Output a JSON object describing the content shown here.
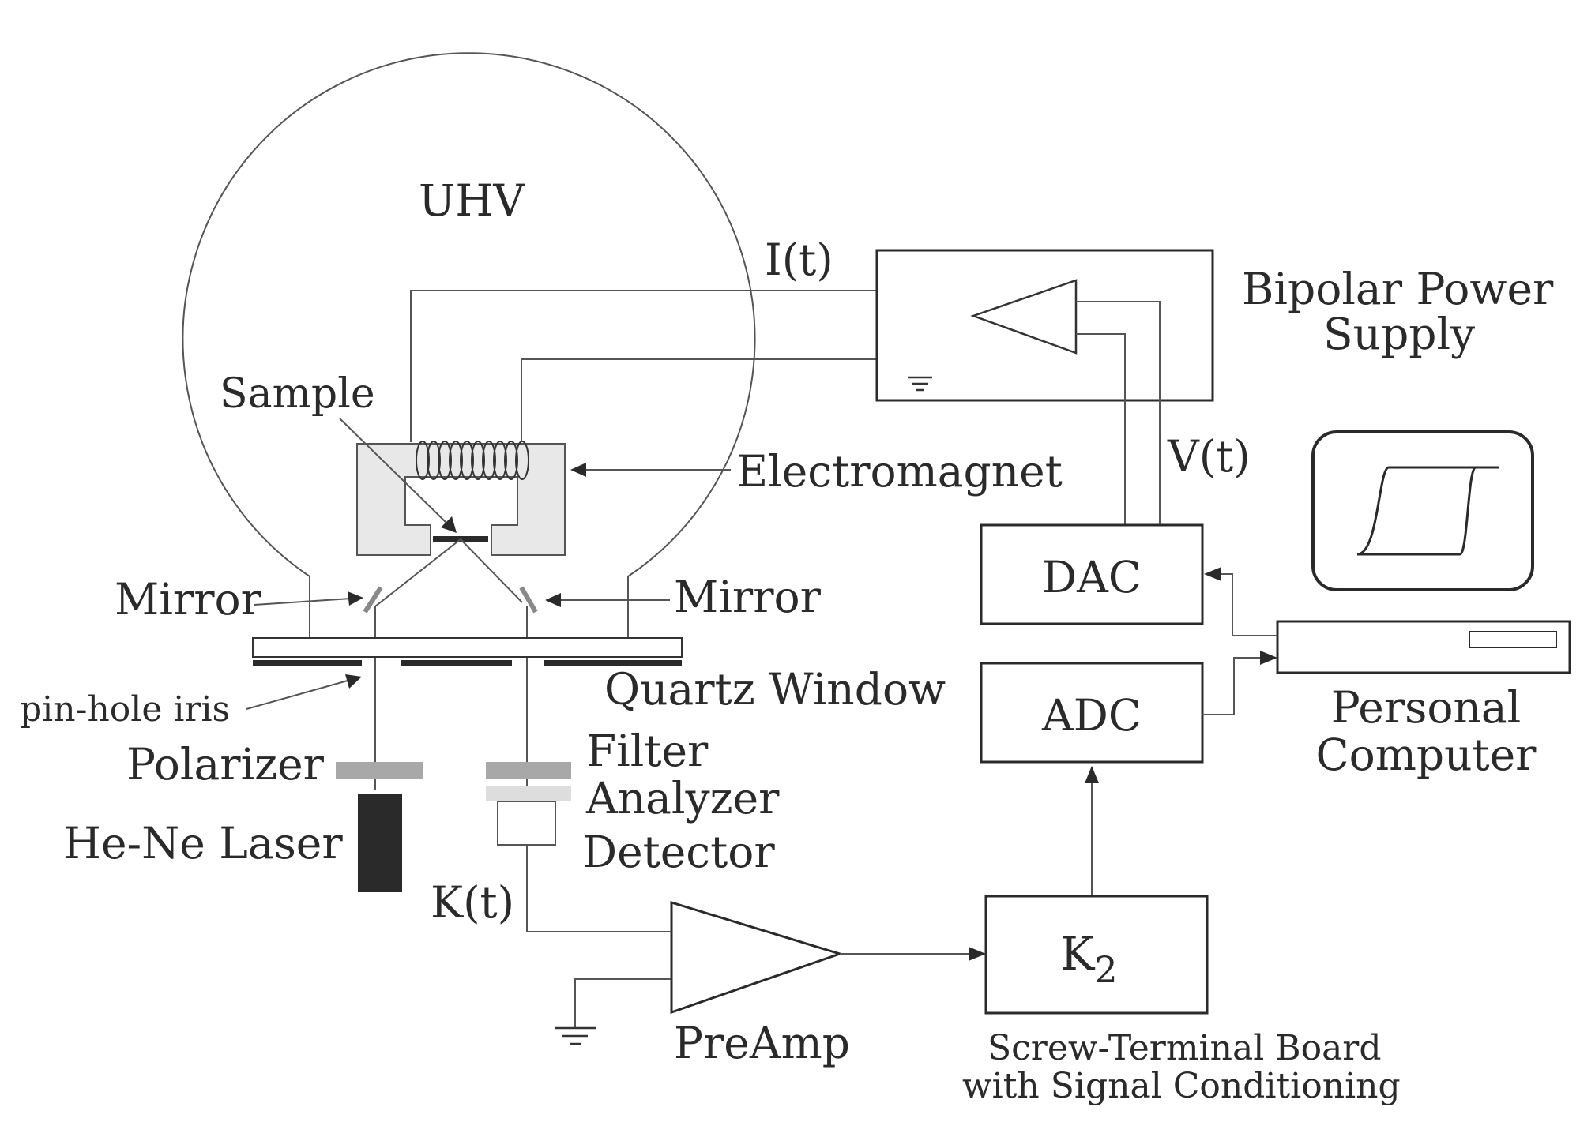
{
  "labels": {
    "uhv": "UHV",
    "it": "I(t)",
    "bipolar_line1": "Bipolar  Power",
    "bipolar_line2": "Supply",
    "sample": "Sample",
    "electromagnet": "Electromagnet",
    "vt": "V(t)",
    "mirror_left": "Mirror",
    "mirror_right": "Mirror",
    "dac": "DAC",
    "adc": "ADC",
    "quartz_window": "Quartz  Window",
    "pinhole_iris": "pin-hole  iris",
    "polarizer": "Polarizer",
    "filter": "Filter",
    "analyzer": "Analyzer",
    "detector": "Detector",
    "laser": "He-Ne  Laser",
    "kt": "K(t)",
    "k2_main": "K",
    "k2_sub": "2",
    "preamp": "PreAmp",
    "pc_line1": "Personal",
    "pc_line2": "Computer",
    "board_line1": "Screw-Terminal  Board",
    "board_line2": "with  Signal  Conditioning"
  },
  "icons": {
    "chamber": "uhv-chamber-icon",
    "coil": "electromagnet-coil-icon",
    "amplifier": "amplifier-triangle-icon",
    "ground": "ground-symbol-icon",
    "hysteresis": "hysteresis-loop-icon"
  },
  "colors": {
    "line": "#555555",
    "ink": "#2a2a2a",
    "magnet_fill": "#e8e8e8",
    "polarizer_fill": "#a8a8a8",
    "laser_fill": "#2a2a2a"
  }
}
